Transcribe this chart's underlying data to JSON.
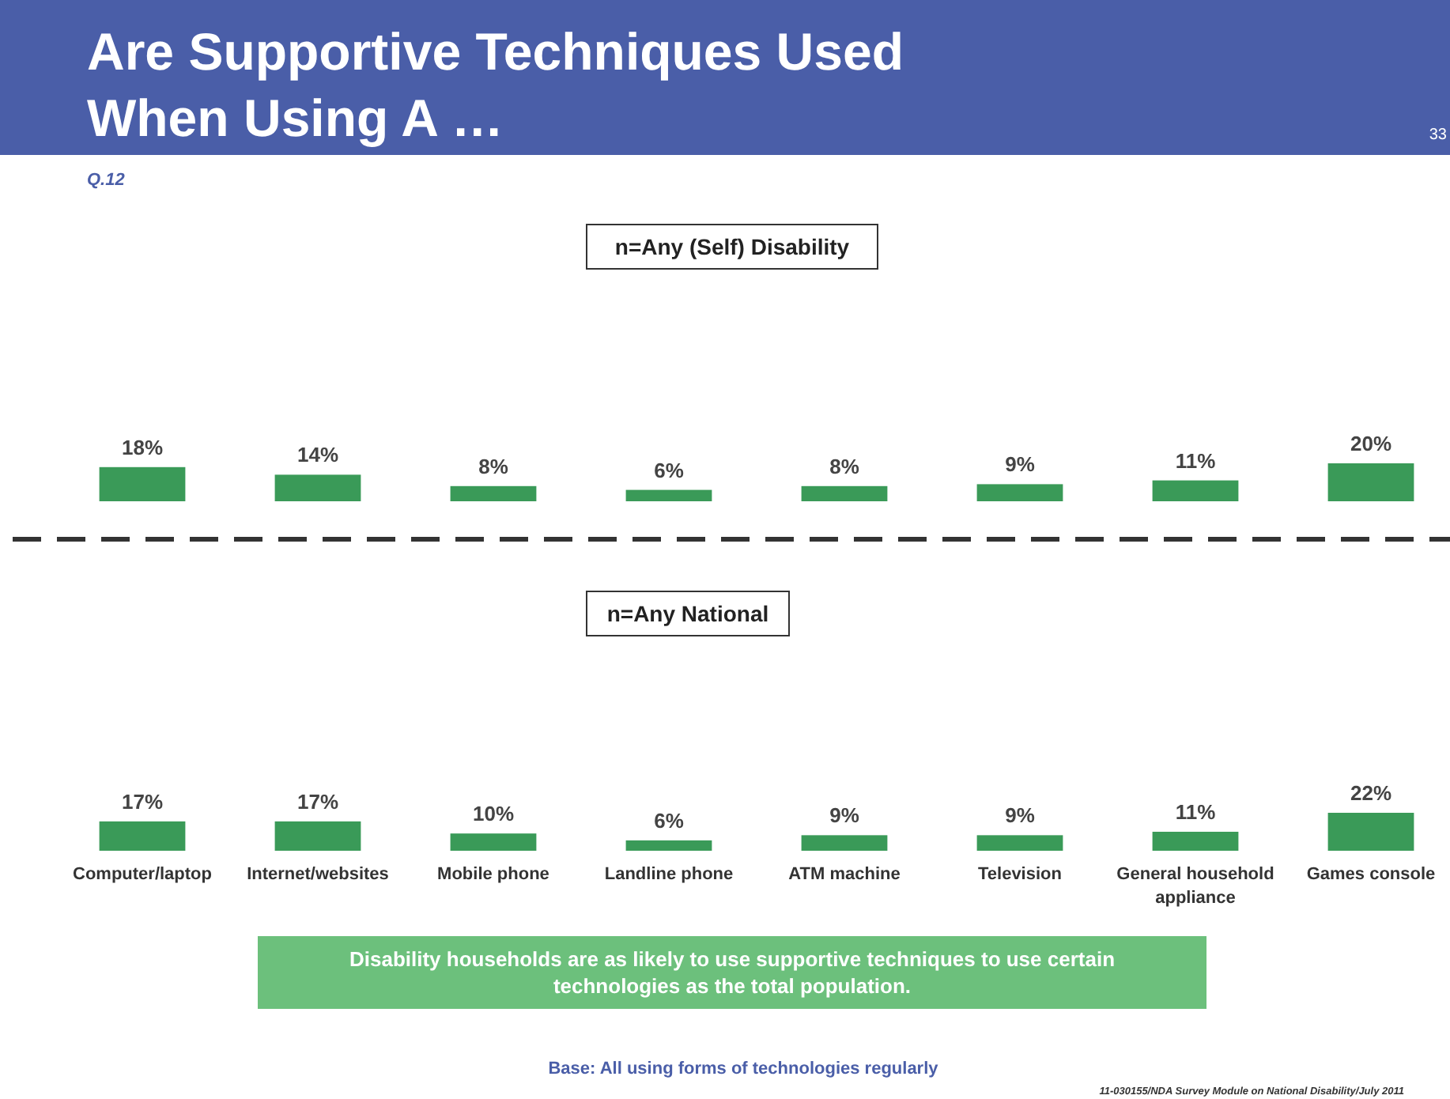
{
  "chart_data": [
    {
      "type": "bar",
      "title": "Are Supportive Techniques Used When Using A …",
      "subtitle": "Q.12",
      "annotations": [
        "33",
        "n=Any (Self) Disability"
      ],
      "categories": [
        null,
        null,
        null,
        null,
        null,
        null,
        null,
        null
      ],
      "values": [
        18,
        14,
        8,
        6,
        8,
        9,
        11,
        20
      ],
      "color": "#3a9a58",
      "value_labels": [
        "18%",
        "14%",
        "8%",
        "6%",
        "8%",
        "9%",
        "11%",
        "20%"
      ]
    },
    {
      "type": "bar",
      "annotations": [
        "n=Any National",
        "Disability households are as likely to use supportive techniques to use certain technologies as the total population.",
        "Base: All using forms of technologies regularly",
        "11-030155/NDA Survey Module on National Disability/July 2011"
      ],
      "categories": [
        "Computer/laptop",
        "Internet/websites",
        "Mobile phone",
        "Landline phone",
        "ATM machine",
        "Television",
        "General household appliance",
        "Games console"
      ],
      "values": [
        17,
        17,
        10,
        6,
        9,
        9,
        11,
        22
      ],
      "color": "#3a9a58",
      "value_labels": [
        "17%",
        "17%",
        "10%",
        "6%",
        "9%",
        "9%",
        "11%",
        "22%"
      ]
    }
  ]
}
